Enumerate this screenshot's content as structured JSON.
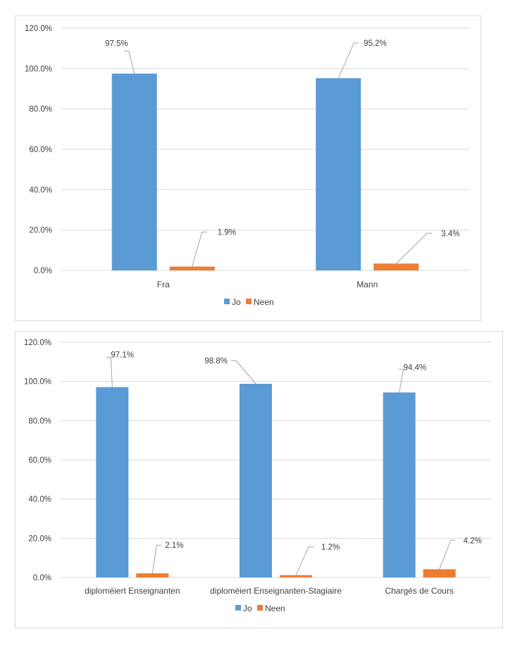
{
  "colors": {
    "jo": "#5B9BD5",
    "neen": "#ED7D31",
    "grid": "#d9d9d9",
    "text": "#404040"
  },
  "chart_data": [
    {
      "type": "bar",
      "categories": [
        "Fra",
        "Mann"
      ],
      "series": [
        {
          "name": "Jo",
          "values": [
            97.5,
            95.2
          ]
        },
        {
          "name": "Neen",
          "values": [
            1.9,
            3.4
          ]
        }
      ],
      "data_labels": [
        [
          "97.5%",
          "95.2%"
        ],
        [
          "1.9%",
          "3.4%"
        ]
      ],
      "ylim": [
        0,
        120
      ],
      "yticks": [
        "0.0%",
        "20.0%",
        "40.0%",
        "60.0%",
        "80.0%",
        "100.0%",
        "120.0%"
      ],
      "title": "",
      "xlabel": "",
      "ylabel": "",
      "grid": true,
      "legend": "bottom"
    },
    {
      "type": "bar",
      "categories": [
        "diploméiert Enseignanten",
        "diploméiert Enseignanten-Stagiaire",
        "Chargés de Cours"
      ],
      "series": [
        {
          "name": "Jo",
          "values": [
            97.1,
            98.8,
            94.4
          ]
        },
        {
          "name": "Neen",
          "values": [
            2.1,
            1.2,
            4.2
          ]
        }
      ],
      "data_labels": [
        [
          "97.1%",
          "98.8%",
          "94.4%"
        ],
        [
          "2.1%",
          "1.2%",
          "4.2%"
        ]
      ],
      "ylim": [
        0,
        120
      ],
      "yticks": [
        "0.0%",
        "20.0%",
        "40.0%",
        "60.0%",
        "80.0%",
        "100.0%",
        "120.0%"
      ],
      "title": "",
      "xlabel": "",
      "ylabel": "",
      "grid": true,
      "legend": "bottom"
    }
  ]
}
